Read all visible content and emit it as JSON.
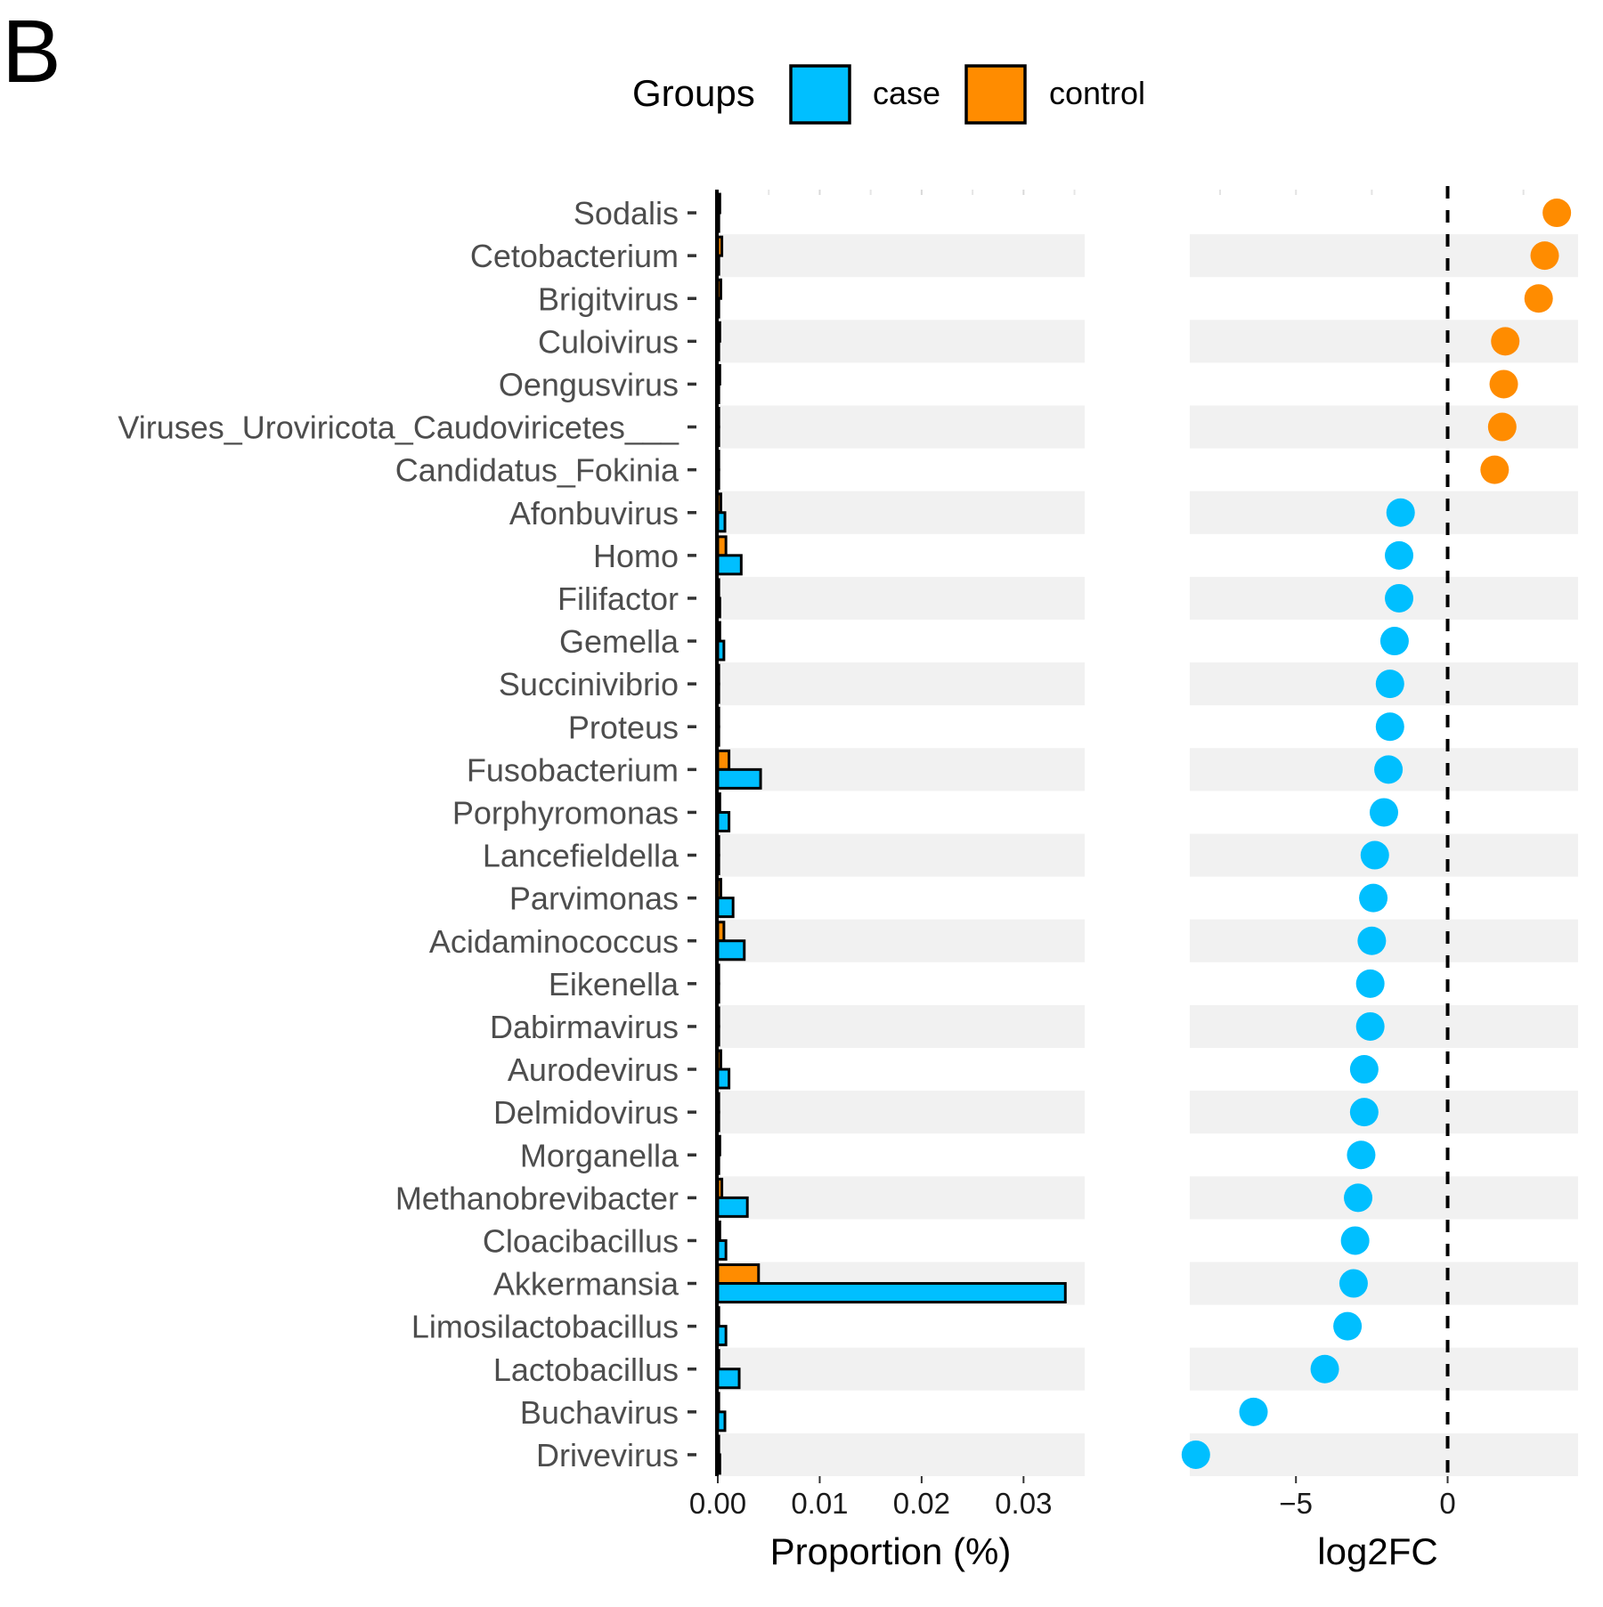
{
  "panel_label": "B",
  "legend": {
    "title": "Groups",
    "items": [
      {
        "label": "case",
        "color": "#00BFFF"
      },
      {
        "label": "control",
        "color": "#FF8C00"
      }
    ]
  },
  "chart_data": [
    {
      "type": "bar",
      "orientation": "horizontal",
      "grouped": true,
      "xlabel": "Proportion (%)",
      "ylabel": "",
      "xlim": [
        0,
        0.036
      ],
      "xticks": [
        0.0,
        0.01,
        0.02,
        0.03
      ],
      "xtick_labels": [
        "0.00",
        "0.01",
        "0.02",
        "0.03"
      ],
      "grid": false,
      "row_striping": true,
      "categories": [
        "Sodalis",
        "Cetobacterium",
        "Brigitvirus",
        "Culoivirus",
        "Oengusvirus",
        "Viruses_Uroviricota_Caudoviricetes___",
        "Candidatus_Fokinia",
        "Afonbuvirus",
        "Homo",
        "Filifactor",
        "Gemella",
        "Succinivibrio",
        "Proteus",
        "Fusobacterium",
        "Porphyromonas",
        "Lancefieldella",
        "Parvimonas",
        "Acidaminococcus",
        "Eikenella",
        "Dabirmavirus",
        "Aurodevirus",
        "Delmidovirus",
        "Morganella",
        "Methanobrevibacter",
        "Cloacibacillus",
        "Akkermansia",
        "Limosilactobacillus",
        "Lactobacillus",
        "Buchavirus",
        "Drivevirus"
      ],
      "series": [
        {
          "name": "control",
          "color": "#FF8C00",
          "values": [
            0.0002,
            0.0004,
            0.0003,
            0.0002,
            0.0002,
            0.0001,
            0.0001,
            0.0003,
            0.0008,
            0.0001,
            0.0002,
            0.0001,
            0.0001,
            0.0011,
            0.0002,
            0.0001,
            0.0003,
            0.0006,
            0.0001,
            0.0001,
            0.0003,
            0.0001,
            0.0002,
            0.0004,
            0.0002,
            0.004,
            0.0001,
            0.0001,
            0.0001,
            0.0001
          ]
        },
        {
          "name": "case",
          "color": "#00BFFF",
          "values": [
            0.0001,
            0.0001,
            0.0001,
            0.0001,
            0.0001,
            0.0001,
            0.0001,
            0.0007,
            0.0023,
            0.0002,
            0.0006,
            0.0001,
            0.0001,
            0.0042,
            0.0011,
            0.0001,
            0.0015,
            0.0026,
            0.0001,
            0.0001,
            0.0011,
            0.0001,
            0.0001,
            0.0029,
            0.0008,
            0.0341,
            0.0008,
            0.0021,
            0.0007,
            0.0002
          ]
        }
      ]
    },
    {
      "type": "scatter",
      "xlabel": "log2FC",
      "ylabel": "",
      "xlim": [
        -8.5,
        4.3
      ],
      "xticks": [
        -5,
        0
      ],
      "xtick_labels": [
        "−5",
        "0"
      ],
      "reference_line": {
        "x": 0,
        "style": "dashed"
      },
      "grid": false,
      "row_striping": true,
      "categories": [
        "Sodalis",
        "Cetobacterium",
        "Brigitvirus",
        "Culoivirus",
        "Oengusvirus",
        "Viruses_Uroviricota_Caudoviricetes___",
        "Candidatus_Fokinia",
        "Afonbuvirus",
        "Homo",
        "Filifactor",
        "Gemella",
        "Succinivibrio",
        "Proteus",
        "Fusobacterium",
        "Porphyromonas",
        "Lancefieldella",
        "Parvimonas",
        "Acidaminococcus",
        "Eikenella",
        "Dabirmavirus",
        "Aurodevirus",
        "Delmidovirus",
        "Morganella",
        "Methanobrevibacter",
        "Cloacibacillus",
        "Akkermansia",
        "Limosilactobacillus",
        "Lactobacillus",
        "Buchavirus",
        "Drivevirus"
      ],
      "values": [
        3.6,
        3.2,
        3.0,
        1.9,
        1.85,
        1.8,
        1.55,
        -1.55,
        -1.6,
        -1.6,
        -1.75,
        -1.9,
        -1.9,
        -1.95,
        -2.1,
        -2.4,
        -2.45,
        -2.5,
        -2.55,
        -2.55,
        -2.75,
        -2.75,
        -2.85,
        -2.95,
        -3.05,
        -3.1,
        -3.3,
        -4.05,
        -6.4,
        -8.3
      ],
      "groups": [
        "control",
        "control",
        "control",
        "control",
        "control",
        "control",
        "control",
        "case",
        "case",
        "case",
        "case",
        "case",
        "case",
        "case",
        "case",
        "case",
        "case",
        "case",
        "case",
        "case",
        "case",
        "case",
        "case",
        "case",
        "case",
        "case",
        "case",
        "case",
        "case",
        "case"
      ]
    }
  ]
}
